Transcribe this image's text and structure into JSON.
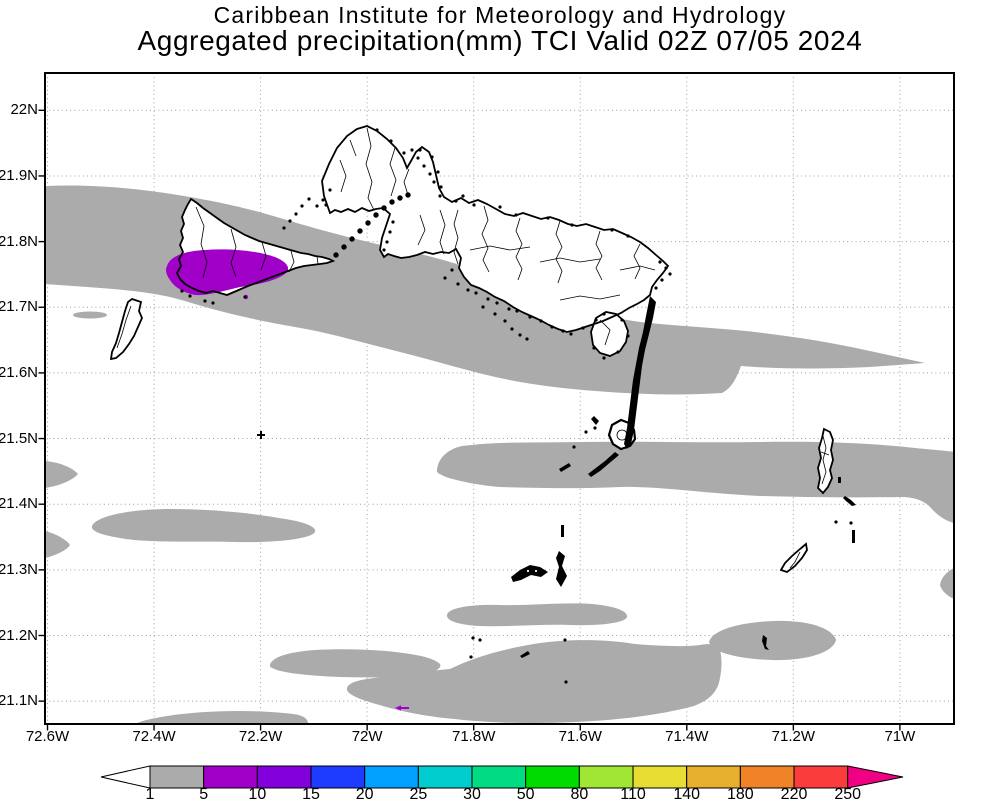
{
  "header": {
    "line1": "Caribbean Institute for Meteorology and Hydrology",
    "line2": "Aggregated precipitation(mm) TCI Valid 02Z 07/05 2024"
  },
  "map": {
    "lat_ticks": [
      "22N",
      "21.9N",
      "21.8N",
      "21.7N",
      "21.6N",
      "21.5N",
      "21.4N",
      "21.3N",
      "21.2N",
      "21.1N"
    ],
    "lon_ticks": [
      "72.6W",
      "72.4W",
      "72.2W",
      "72W",
      "71.8W",
      "71.6W",
      "71.4W",
      "71.2W",
      "71W"
    ]
  },
  "colorbar": {
    "levels": [
      "1",
      "5",
      "10",
      "15",
      "20",
      "25",
      "30",
      "50",
      "80",
      "110",
      "140",
      "180",
      "220",
      "250"
    ],
    "segment_colors": [
      "#ababab",
      "#a000c8",
      "#8200dc",
      "#1e3cff",
      "#00a0ff",
      "#00cdcd",
      "#00dc82",
      "#00dc00",
      "#a0e632",
      "#e6dc32",
      "#e6af2d",
      "#f08228",
      "#fa3c3c"
    ],
    "underflow_color": "#ffffff",
    "overflow_color": "#f00082"
  },
  "colors": {
    "background": "#ffffff",
    "shade_light": "#ababab",
    "shade_5_10": "#a000c8",
    "coastline": "#000000",
    "grid": "#9e9e9e",
    "frame": "#000000",
    "text": "#000000"
  }
}
